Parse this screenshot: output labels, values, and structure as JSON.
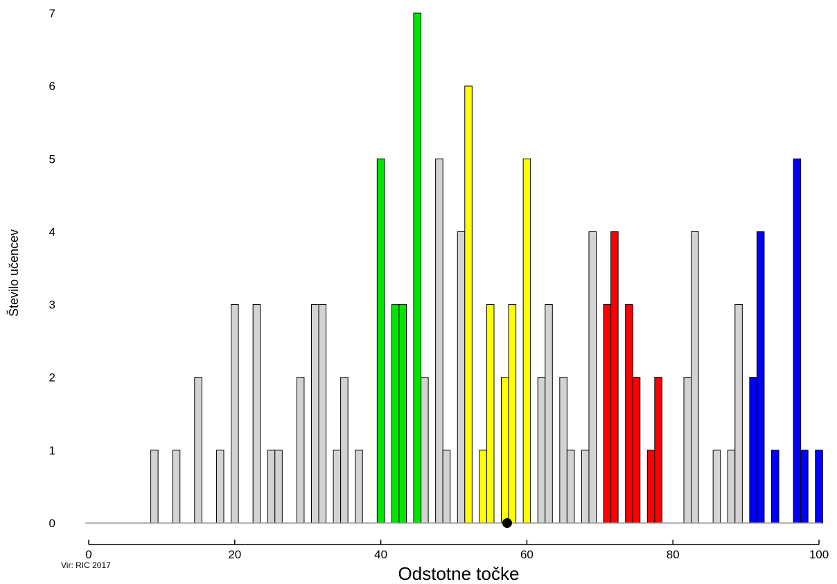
{
  "chart_data": {
    "type": "bar",
    "xlabel": "Odstotne točke",
    "ylabel": "Število učencev",
    "source": "Vir: RIC 2017",
    "xlim": [
      0,
      100
    ],
    "ylim": [
      0,
      7
    ],
    "x_ticks": [
      0,
      20,
      40,
      60,
      80,
      100
    ],
    "y_ticks": [
      0,
      1,
      2,
      3,
      4,
      5,
      6,
      7
    ],
    "grid": false,
    "colors": {
      "gray": "#d3d3d3",
      "green": "#00e600",
      "yellow": "#ffff00",
      "red": "#ff0000",
      "blue": "#0000ff"
    },
    "series": [
      {
        "color": "gray",
        "x": [
          9,
          12,
          15,
          18,
          20,
          23,
          25,
          26,
          29,
          31,
          32,
          34,
          35,
          37,
          46,
          48,
          49,
          51,
          62,
          63,
          65,
          66,
          68,
          69,
          82,
          83,
          86,
          88,
          89
        ],
        "values": [
          1,
          1,
          2,
          1,
          3,
          3,
          1,
          1,
          2,
          3,
          3,
          1,
          2,
          1,
          2,
          5,
          1,
          4,
          2,
          3,
          2,
          1,
          1,
          4,
          2,
          4,
          1,
          1,
          3
        ]
      },
      {
        "color": "green",
        "x": [
          40,
          42,
          43,
          45
        ],
        "values": [
          5,
          3,
          3,
          7
        ]
      },
      {
        "color": "yellow",
        "x": [
          52,
          54,
          55,
          57,
          58,
          60
        ],
        "values": [
          6,
          1,
          3,
          2,
          3,
          5
        ]
      },
      {
        "color": "red",
        "x": [
          71,
          72,
          74,
          75,
          77,
          78
        ],
        "values": [
          3,
          4,
          3,
          2,
          1,
          2
        ]
      },
      {
        "color": "blue",
        "x": [
          91,
          92,
          94,
          97,
          98,
          100
        ],
        "values": [
          2,
          4,
          1,
          5,
          1,
          1
        ]
      }
    ],
    "marker": {
      "x": 57.3,
      "y": 0
    }
  }
}
